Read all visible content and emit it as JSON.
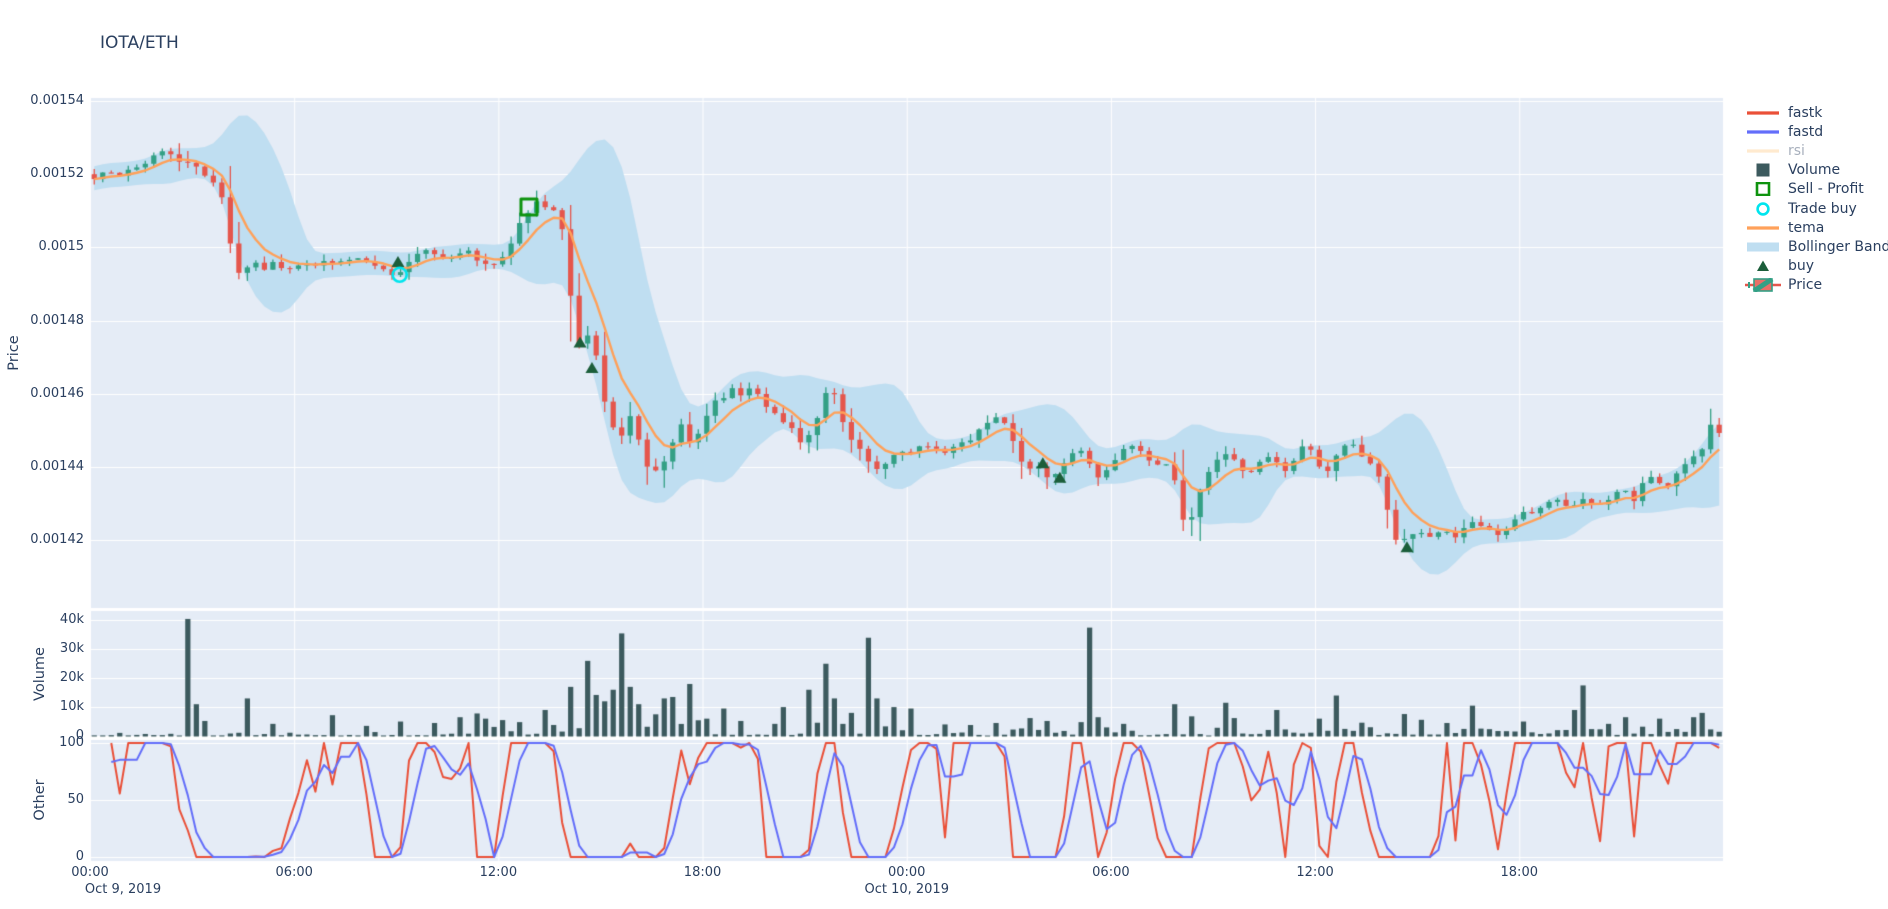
{
  "chart": {
    "title": "IOTA/ETH"
  },
  "colors": {
    "paper_bg": "#ffffff",
    "plot_bg": "#E5ECF6",
    "grid": "#ffffff",
    "text": "#2a3f5f",
    "muted_text": "#a8b0bd",
    "candle_up": "#33A085",
    "candle_down": "#E5564C",
    "tema": "#FFA15A",
    "bollinger": "#BFDEF1",
    "fastk": "#EA5038",
    "fastd": "#636EFA",
    "rsi": "#FFD9A8",
    "volume_bar": "#3C5A5E",
    "buy": "#1B5E3A",
    "sell_profit": "#0E930E",
    "trade_buy": "#00E5EE"
  },
  "legend": {
    "items": [
      {
        "label": "fastk",
        "type": "line",
        "color": "#EA5038",
        "faded": false
      },
      {
        "label": "fastd",
        "type": "line",
        "color": "#636EFA",
        "faded": false
      },
      {
        "label": "rsi",
        "type": "line",
        "color": "#FFD9A8",
        "faded": true
      },
      {
        "label": "Volume",
        "type": "square",
        "color": "#3C5A5E",
        "faded": false
      },
      {
        "label": "Sell - Profit",
        "type": "square-open",
        "color": "#0E930E",
        "faded": false
      },
      {
        "label": "Trade buy",
        "type": "circle-open",
        "color": "#00E5EE",
        "faded": false
      },
      {
        "label": "tema",
        "type": "line",
        "color": "#FFA15A",
        "faded": false
      },
      {
        "label": "Bollinger Band",
        "type": "band",
        "color": "#BFDEF1",
        "faded": false
      },
      {
        "label": "buy",
        "type": "triangle",
        "color": "#1B5E3A",
        "faded": false
      },
      {
        "label": "Price",
        "type": "candle",
        "color": "#33A085",
        "color2": "#E5564C",
        "faded": false
      }
    ]
  },
  "axes": {
    "price": {
      "title": "Price",
      "ticks": [
        "0.00154",
        "0.00152",
        "0.0015",
        "0.00148",
        "0.00146",
        "0.00144",
        "0.00142"
      ],
      "tick_values": [
        0.00154,
        0.00152,
        0.0015,
        0.00148,
        0.00146,
        0.00144,
        0.00142
      ]
    },
    "volume": {
      "title": "Volume",
      "ticks": [
        "40k",
        "30k",
        "20k",
        "10k",
        "0"
      ],
      "tick_values": [
        40000,
        30000,
        20000,
        10000,
        0
      ]
    },
    "other": {
      "title": "Other",
      "ticks": [
        "100",
        "50",
        "0"
      ],
      "tick_values": [
        100,
        50,
        0
      ]
    },
    "x": {
      "ticks": [
        {
          "label": "00:00",
          "hour": 0
        },
        {
          "label": "06:00",
          "hour": 6
        },
        {
          "label": "12:00",
          "hour": 12
        },
        {
          "label": "18:00",
          "hour": 18
        },
        {
          "label": "00:00",
          "hour": 24
        },
        {
          "label": "06:00",
          "hour": 30
        },
        {
          "label": "12:00",
          "hour": 36
        },
        {
          "label": "18:00",
          "hour": 42
        }
      ],
      "dates": [
        {
          "label": "Oct 9, 2019",
          "hour": 0
        },
        {
          "label": "Oct 10, 2019",
          "hour": 24
        }
      ]
    }
  },
  "chart_data": [
    {
      "type": "candlestick",
      "name": "Price (IOTA/ETH, 15-min candles over Oct 9-10 2019)",
      "interval_hours": 0.25,
      "ylim": [
        0.001402,
        0.0015411
      ],
      "keyframes": [
        [
          0,
          0.00152
        ],
        [
          0.3,
          0.001519
        ],
        [
          0.6,
          0.0015205
        ],
        [
          0.9,
          0.0015195
        ],
        [
          1.2,
          0.001521
        ],
        [
          1.5,
          0.0015225
        ],
        [
          1.8,
          0.0015235
        ],
        [
          2.1,
          0.001526
        ],
        [
          2.3,
          0.001527
        ],
        [
          2.5,
          0.0015255
        ],
        [
          2.7,
          0.001524
        ],
        [
          2.9,
          0.001522
        ],
        [
          3.1,
          0.0015225
        ],
        [
          3.4,
          0.00152
        ],
        [
          3.7,
          0.001519
        ],
        [
          4.0,
          0.001514
        ],
        [
          4.2,
          0.001502
        ],
        [
          4.4,
          0.001495
        ],
        [
          4.6,
          0.001493
        ],
        [
          4.9,
          0.001496
        ],
        [
          5.2,
          0.001494
        ],
        [
          5.5,
          0.0014955
        ],
        [
          5.8,
          0.0014935
        ],
        [
          6.1,
          0.0014945
        ],
        [
          6.4,
          0.001496
        ],
        [
          6.7,
          0.001495
        ],
        [
          7.0,
          0.0014965
        ],
        [
          7.3,
          0.001495
        ],
        [
          7.6,
          0.001496
        ],
        [
          7.9,
          0.0014975
        ],
        [
          8.2,
          0.001496
        ],
        [
          8.5,
          0.001495
        ],
        [
          8.8,
          0.001494
        ],
        [
          9.1,
          0.0014925
        ],
        [
          9.4,
          0.001495
        ],
        [
          9.7,
          0.001498
        ],
        [
          10.0,
          0.0014995
        ],
        [
          10.3,
          0.001498
        ],
        [
          10.6,
          0.0014965
        ],
        [
          10.9,
          0.0014985
        ],
        [
          11.2,
          0.0014995
        ],
        [
          11.5,
          0.001497
        ],
        [
          11.9,
          0.0014935
        ],
        [
          12.2,
          0.001497
        ],
        [
          12.5,
          0.001501
        ],
        [
          12.8,
          0.001507
        ],
        [
          13.1,
          0.001511
        ],
        [
          13.35,
          0.0015145
        ],
        [
          13.6,
          0.001509
        ],
        [
          13.8,
          0.001511
        ],
        [
          14.0,
          0.001505
        ],
        [
          14.2,
          0.001489
        ],
        [
          14.4,
          0.001477
        ],
        [
          14.6,
          0.001472
        ],
        [
          14.8,
          0.001476
        ],
        [
          15.0,
          0.001471
        ],
        [
          15.2,
          0.00146
        ],
        [
          15.5,
          0.001452
        ],
        [
          15.8,
          0.001449
        ],
        [
          16.0,
          0.001454
        ],
        [
          16.2,
          0.00145
        ],
        [
          16.4,
          0.001444
        ],
        [
          16.65,
          0.001437
        ],
        [
          16.9,
          0.001441
        ],
        [
          17.2,
          0.001446
        ],
        [
          17.5,
          0.001452
        ],
        [
          17.8,
          0.001446
        ],
        [
          18.1,
          0.00145
        ],
        [
          18.4,
          0.001457
        ],
        [
          18.7,
          0.001459
        ],
        [
          19.0,
          0.001461
        ],
        [
          19.3,
          0.001459
        ],
        [
          19.6,
          0.001462
        ],
        [
          19.9,
          0.001458
        ],
        [
          20.2,
          0.001455
        ],
        [
          20.5,
          0.001452
        ],
        [
          20.8,
          0.00145
        ],
        [
          21.1,
          0.001446
        ],
        [
          21.4,
          0.001452
        ],
        [
          21.8,
          0.001461
        ],
        [
          22.1,
          0.001458
        ],
        [
          22.4,
          0.001448
        ],
        [
          22.7,
          0.001445
        ],
        [
          23.0,
          0.001442
        ],
        [
          23.3,
          0.001439
        ],
        [
          23.6,
          0.001441
        ],
        [
          23.9,
          0.001445
        ],
        [
          24.3,
          0.001444
        ],
        [
          24.7,
          0.001446
        ],
        [
          25.1,
          0.001444
        ],
        [
          25.5,
          0.001445
        ],
        [
          25.9,
          0.001447
        ],
        [
          26.3,
          0.00145
        ],
        [
          26.7,
          0.001453
        ],
        [
          27.1,
          0.001452
        ],
        [
          27.4,
          0.001443
        ],
        [
          27.7,
          0.00144
        ],
        [
          28.0,
          0.001441
        ],
        [
          28.3,
          0.001437
        ],
        [
          28.6,
          0.001439
        ],
        [
          28.9,
          0.001443
        ],
        [
          29.2,
          0.001445
        ],
        [
          29.5,
          0.001441
        ],
        [
          29.8,
          0.001437
        ],
        [
          30.1,
          0.001441
        ],
        [
          30.4,
          0.001444
        ],
        [
          30.7,
          0.001446
        ],
        [
          31.0,
          0.001444
        ],
        [
          31.3,
          0.001441
        ],
        [
          31.6,
          0.00144
        ],
        [
          31.9,
          0.001442
        ],
        [
          32.15,
          0.001429
        ],
        [
          32.35,
          0.00142
        ],
        [
          32.6,
          0.001432
        ],
        [
          32.9,
          0.001437
        ],
        [
          33.2,
          0.001441
        ],
        [
          33.5,
          0.001444
        ],
        [
          33.8,
          0.001441
        ],
        [
          34.1,
          0.001438
        ],
        [
          34.4,
          0.00144
        ],
        [
          34.7,
          0.001443
        ],
        [
          35.0,
          0.001441
        ],
        [
          35.3,
          0.001438
        ],
        [
          35.6,
          0.001444
        ],
        [
          35.9,
          0.001446
        ],
        [
          36.2,
          0.001441
        ],
        [
          36.5,
          0.001439
        ],
        [
          36.8,
          0.001444
        ],
        [
          37.1,
          0.001447
        ],
        [
          37.4,
          0.001444
        ],
        [
          37.7,
          0.001441
        ],
        [
          38.0,
          0.001438
        ],
        [
          38.3,
          0.001427
        ],
        [
          38.5,
          0.001419
        ],
        [
          38.8,
          0.00142
        ],
        [
          39.1,
          0.001422
        ],
        [
          39.5,
          0.001421
        ],
        [
          39.9,
          0.001422
        ],
        [
          40.3,
          0.001421
        ],
        [
          40.6,
          0.001425
        ],
        [
          41.1,
          0.001423
        ],
        [
          41.5,
          0.001421
        ],
        [
          42.2,
          0.001427
        ],
        [
          42.6,
          0.001428
        ],
        [
          43.0,
          0.00143
        ],
        [
          43.3,
          0.001432
        ],
        [
          43.6,
          0.001429
        ],
        [
          44.0,
          0.001431
        ],
        [
          44.4,
          0.001429
        ],
        [
          44.8,
          0.001432
        ],
        [
          45.2,
          0.001434
        ],
        [
          45.5,
          0.001431
        ],
        [
          45.8,
          0.001436
        ],
        [
          46.1,
          0.001438
        ],
        [
          46.4,
          0.001434
        ],
        [
          46.9,
          0.00144
        ],
        [
          47.2,
          0.001444
        ],
        [
          47.4,
          0.001441
        ],
        [
          47.6,
          0.001448
        ],
        [
          47.8,
          0.001452
        ],
        [
          47.95,
          0.001449
        ]
      ],
      "volatility_windows": [
        [
          2.0,
          3.3,
          1.2e-06
        ],
        [
          3.9,
          4.7,
          2.2e-06
        ],
        [
          13.9,
          16.8,
          2.2e-06
        ],
        [
          20.8,
          23.3,
          1.2e-06
        ],
        [
          27.2,
          29.0,
          1e-06
        ],
        [
          32.0,
          32.7,
          2.6e-06
        ],
        [
          38.2,
          38.9,
          2.6e-06
        ]
      ],
      "overlays": {
        "tema": {
          "derived": "double EMA of close"
        },
        "bollinger": {
          "window": 10,
          "mult": 2.0,
          "min_halfwidth": 3.3e-06
        }
      },
      "markers": {
        "buy": [
          [
            9.05,
            0.001496
          ],
          [
            14.4,
            0.001474
          ],
          [
            14.75,
            0.001467
          ],
          [
            28.0,
            0.001441
          ],
          [
            28.5,
            0.001437
          ],
          [
            38.7,
            0.001418
          ]
        ],
        "trade_buy": [
          [
            9.1,
            0.0014925
          ]
        ],
        "sell_profit": [
          [
            12.9,
            0.001511
          ]
        ]
      }
    },
    {
      "type": "bar",
      "name": "Volume",
      "ylim": [
        0,
        43500
      ],
      "baseline_max": 1550,
      "spikes": [
        [
          2.7,
          40500
        ],
        [
          2.85,
          24000
        ],
        [
          3.0,
          11000
        ],
        [
          3.3,
          5200
        ],
        [
          4.5,
          13000
        ],
        [
          5.3,
          4200
        ],
        [
          6.9,
          7200
        ],
        [
          8.0,
          3500
        ],
        [
          9.1,
          5000
        ],
        [
          10.0,
          4500
        ],
        [
          10.8,
          6500
        ],
        [
          11.2,
          7800
        ],
        [
          11.6,
          6000
        ],
        [
          12.0,
          5500
        ],
        [
          12.4,
          4800
        ],
        [
          13.3,
          9000
        ],
        [
          13.9,
          11000
        ],
        [
          14.1,
          17000
        ],
        [
          14.5,
          26000
        ],
        [
          14.7,
          14200
        ],
        [
          15.0,
          12000
        ],
        [
          15.3,
          16000
        ],
        [
          15.5,
          35500
        ],
        [
          15.7,
          17000
        ],
        [
          16.1,
          11000
        ],
        [
          16.4,
          7500
        ],
        [
          16.65,
          13000
        ],
        [
          16.9,
          9000
        ],
        [
          17.1,
          13500
        ],
        [
          17.4,
          18000
        ],
        [
          17.9,
          6000
        ],
        [
          18.4,
          9500
        ],
        [
          19.1,
          5200
        ],
        [
          19.9,
          4200
        ],
        [
          20.3,
          10000
        ],
        [
          20.9,
          16000
        ],
        [
          21.4,
          25000
        ],
        [
          21.8,
          13000
        ],
        [
          22.2,
          8000
        ],
        [
          22.7,
          34000
        ],
        [
          23.1,
          13000
        ],
        [
          23.5,
          10000
        ],
        [
          23.9,
          9500
        ],
        [
          24.9,
          4000
        ],
        [
          25.8,
          3800
        ],
        [
          26.6,
          4500
        ],
        [
          27.4,
          6200
        ],
        [
          28.1,
          5200
        ],
        [
          28.9,
          4800
        ],
        [
          29.3,
          37500
        ],
        [
          29.5,
          6500
        ],
        [
          30.3,
          4200
        ],
        [
          31.7,
          11000
        ],
        [
          32.2,
          6800
        ],
        [
          33.3,
          11500
        ],
        [
          33.5,
          6200
        ],
        [
          34.7,
          9000
        ],
        [
          35.9,
          6000
        ],
        [
          36.6,
          14000
        ],
        [
          37.3,
          4600
        ],
        [
          38.4,
          7600
        ],
        [
          39.1,
          5600
        ],
        [
          39.7,
          4500
        ],
        [
          40.4,
          8000
        ],
        [
          40.55,
          10500
        ],
        [
          42.1,
          5000
        ],
        [
          43.4,
          6000
        ],
        [
          43.55,
          9000
        ],
        [
          43.7,
          17500
        ],
        [
          44.6,
          4200
        ],
        [
          44.9,
          6500
        ],
        [
          46.0,
          6000
        ],
        [
          47.1,
          6500
        ],
        [
          47.25,
          8000
        ]
      ],
      "clusters": [
        [
          2.4,
          3.4,
          2600
        ],
        [
          10.5,
          12.6,
          2800
        ],
        [
          13.5,
          18.0,
          5000
        ],
        [
          20.3,
          24.1,
          4200
        ],
        [
          27.0,
          30.5,
          2400
        ],
        [
          33.0,
          37.5,
          2400
        ],
        [
          40.0,
          48.0,
          2200
        ]
      ]
    },
    {
      "type": "line",
      "name": "Other (oscillators)",
      "ylim": [
        0,
        100
      ],
      "series": [
        {
          "name": "fastk",
          "derived": "stochastic %K (window 7) of price closes, clipped to [0,100]"
        },
        {
          "name": "fastd",
          "derived": "SMA(3) of fastk"
        },
        {
          "name": "rsi",
          "visible": "legendonly"
        }
      ]
    }
  ]
}
